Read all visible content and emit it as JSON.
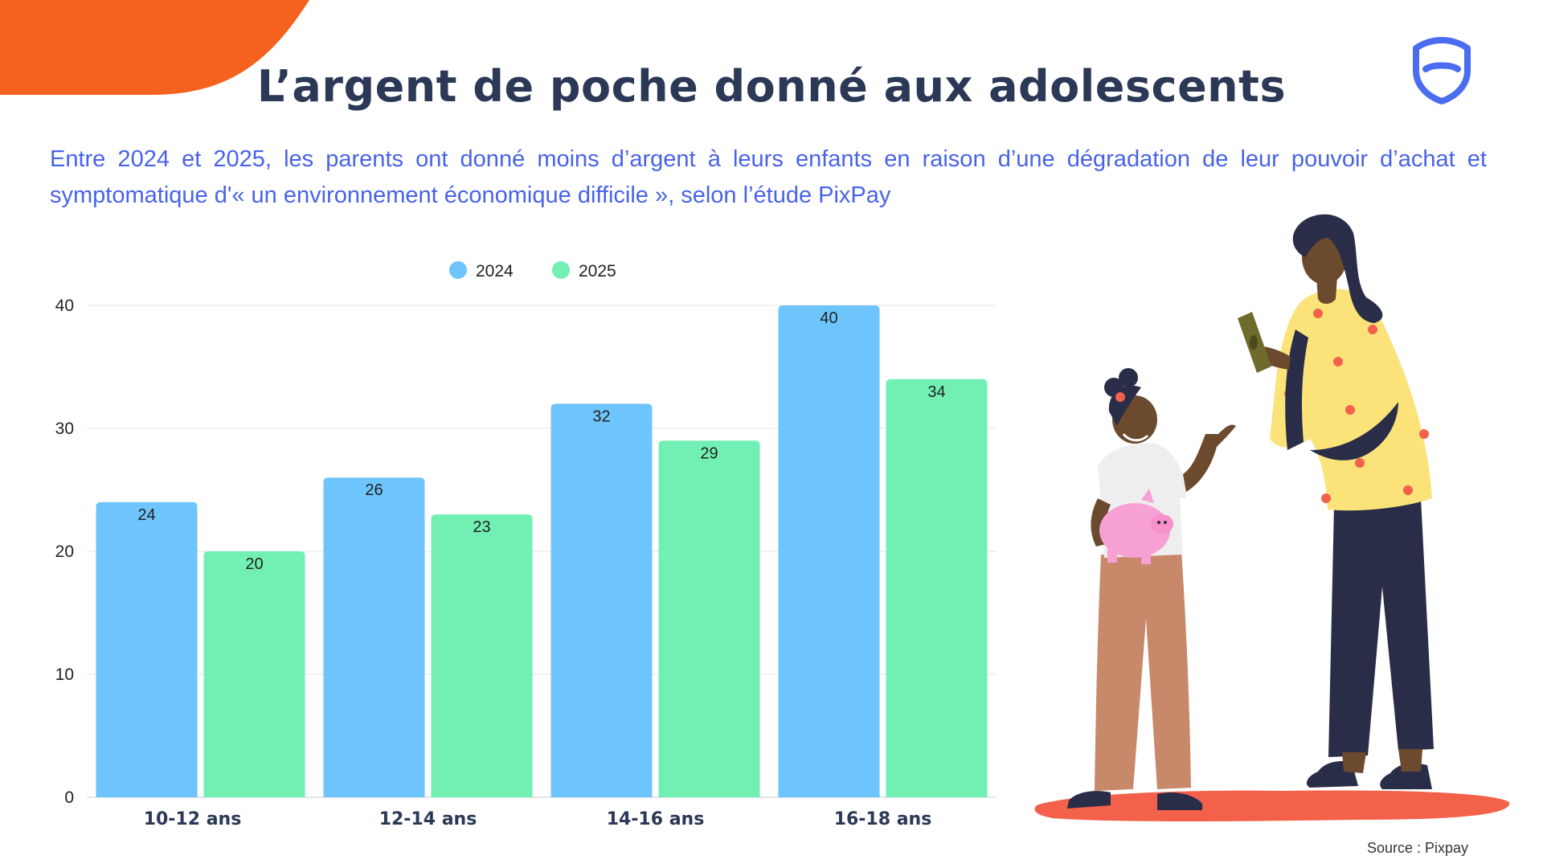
{
  "header": {
    "title": "L’argent de poche donné aux adolescents",
    "subtitle": "Entre 2024 et 2025, les parents ont donné moins d’argent à leurs enfants en raison d’une dégradation de leur pouvoir d’achat et symptomatique  d'« un environnement économique difficile », selon l’étude PixPay"
  },
  "footer": {
    "source": "Source : Pixpay"
  },
  "colors": {
    "accent_orange": "#f5621e",
    "title_navy": "#2b3856",
    "subtitle_blue": "#4863e8",
    "series_2024": "#6ec4fc",
    "series_2025": "#72f0b4",
    "logo_blue": "#4a6cf0"
  },
  "icons": {
    "logo": "shield-smile-logo-icon",
    "illustration": "mother-giving-money-to-daughter-with-piggy-bank"
  },
  "chart_data": {
    "type": "bar",
    "categories": [
      "10-12 ans",
      "12-14 ans",
      "14-16 ans",
      "16-18 ans"
    ],
    "series": [
      {
        "name": "2024",
        "values": [
          24,
          26,
          32,
          40
        ],
        "color": "#6ec4fc"
      },
      {
        "name": "2025",
        "values": [
          20,
          23,
          29,
          34
        ],
        "color": "#72f0b4"
      }
    ],
    "yticks": [
      0,
      10,
      20,
      30,
      40
    ],
    "ylim": [
      0,
      40
    ],
    "grid": true,
    "legend": "top-center",
    "data_labels": true
  }
}
